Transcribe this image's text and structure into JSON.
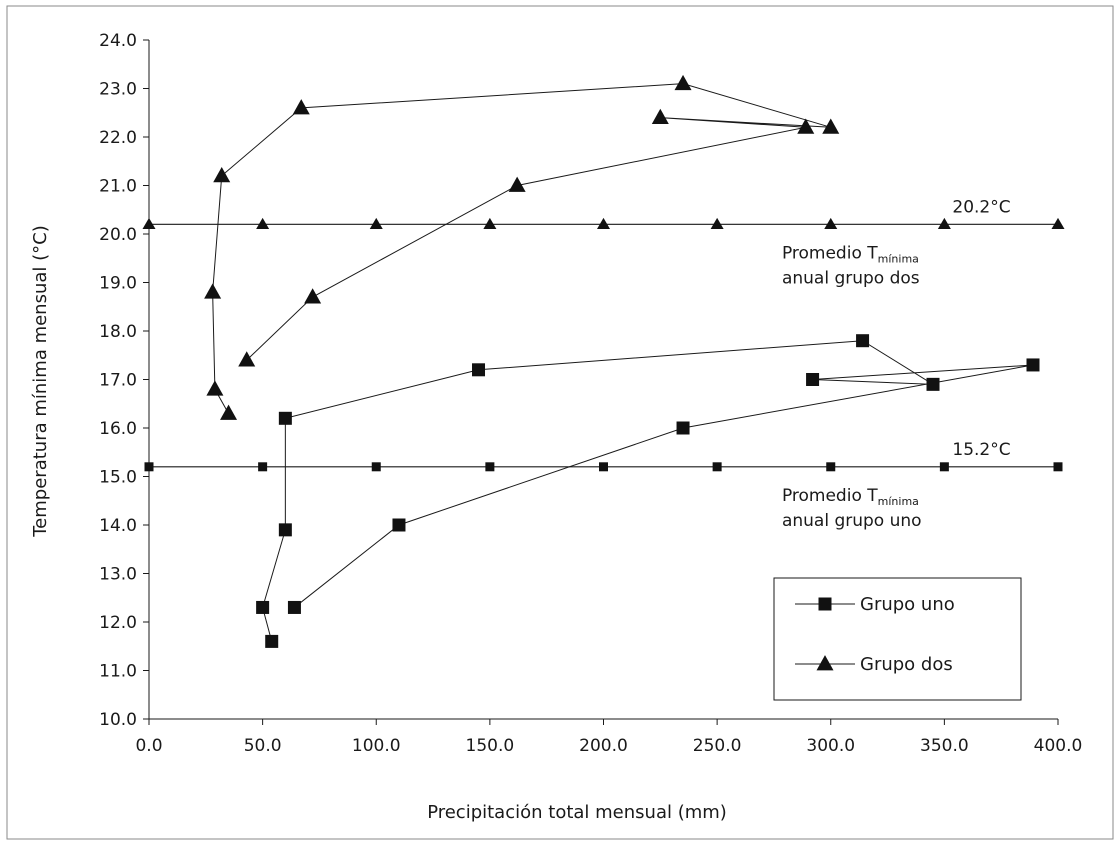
{
  "chart_data": {
    "type": "line",
    "xlabel": "Precipitación total mensual (mm)",
    "ylabel": "Temperatura mínima mensual (°C)",
    "xlim": [
      0,
      400
    ],
    "ylim": [
      10,
      24
    ],
    "x_ticks": [
      "0.0",
      "50.0",
      "100.0",
      "150.0",
      "200.0",
      "250.0",
      "300.0",
      "350.0",
      "400.0"
    ],
    "y_ticks": [
      "10.0",
      "11.0",
      "12.0",
      "13.0",
      "14.0",
      "15.0",
      "16.0",
      "17.0",
      "18.0",
      "19.0",
      "20.0",
      "21.0",
      "22.0",
      "23.0",
      "24.0"
    ],
    "grid": false,
    "legend_position": "bottom-right",
    "series": [
      {
        "name": "Grupo uno",
        "marker": "square",
        "points": [
          [
            54,
            11.6
          ],
          [
            50,
            12.3
          ],
          [
            60,
            13.9
          ],
          [
            60,
            16.2
          ],
          [
            145,
            17.2
          ],
          [
            314,
            17.8
          ],
          [
            345,
            16.9
          ],
          [
            292,
            17.0
          ],
          [
            389,
            17.3
          ],
          [
            235,
            16.0
          ],
          [
            110,
            14.0
          ],
          [
            64,
            12.3
          ]
        ]
      },
      {
        "name": "Grupo dos",
        "marker": "triangle",
        "points": [
          [
            35,
            16.3
          ],
          [
            29,
            16.8
          ],
          [
            28,
            18.8
          ],
          [
            32,
            21.2
          ],
          [
            67,
            22.6
          ],
          [
            235,
            23.1
          ],
          [
            300,
            22.2
          ],
          [
            225,
            22.4
          ],
          [
            289,
            22.2
          ],
          [
            162,
            21.0
          ],
          [
            72,
            18.7
          ],
          [
            43,
            17.4
          ]
        ]
      }
    ],
    "reference_lines": [
      {
        "y": 20.2,
        "marker": "triangle",
        "label": "20.2°C",
        "caption_main": "Promedio T",
        "caption_sub": "mínima",
        "caption_line2": "anual grupo dos",
        "marker_x": [
          0,
          50,
          100,
          150,
          200,
          250,
          300,
          350,
          400
        ]
      },
      {
        "y": 15.2,
        "marker": "square",
        "label": "15.2°C",
        "caption_main": "Promedio T",
        "caption_sub": "mínima",
        "caption_line2": "anual grupo uno",
        "marker_x": [
          0,
          50,
          100,
          150,
          200,
          250,
          300,
          350,
          400
        ]
      }
    ],
    "colors": {
      "line": "#1a1a1a",
      "marker": "#111111",
      "frame": "#8a8a8a"
    }
  }
}
